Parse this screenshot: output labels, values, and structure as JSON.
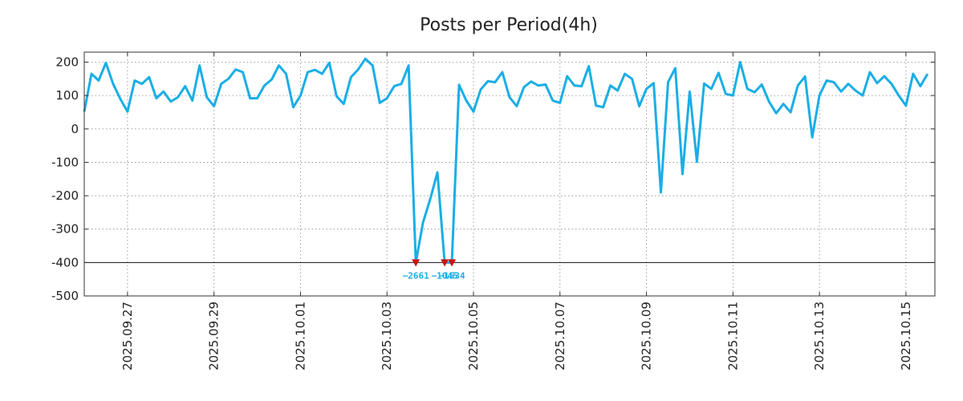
{
  "chart_data": {
    "type": "line",
    "title": "Posts per Period(4h)",
    "xlabel": "",
    "ylabel": "",
    "ylim": [
      -500,
      230
    ],
    "yticks": [
      200,
      100,
      0,
      -100,
      -200,
      -300,
      -400,
      -500
    ],
    "ytick_labels": [
      "200",
      "100",
      "0",
      "-100",
      "-200",
      "-300",
      "-400",
      "-500"
    ],
    "x_period_hours": 4,
    "x_start": "2025.09.26 08:00",
    "x_range_days": [
      0,
      19.67
    ],
    "xticks_days": [
      1,
      3,
      5,
      7,
      9,
      11,
      13,
      15,
      17,
      19
    ],
    "xtick_labels": [
      "2025.09.27",
      "2025.09.29",
      "2025.10.01",
      "2025.10.03",
      "2025.10.05",
      "2025.10.07",
      "2025.10.09",
      "2025.10.11",
      "2025.10.13",
      "2025.10.15"
    ],
    "floor_line": -400,
    "grid": true,
    "line_color": "#1aaee6",
    "marker_color": "#cc1111",
    "annotation_color": "#1aaee6",
    "series": [
      {
        "name": "Posts",
        "values": [
          52,
          165,
          145,
          198,
          135,
          90,
          52,
          145,
          135,
          155,
          92,
          112,
          82,
          95,
          128,
          85,
          190,
          95,
          68,
          135,
          150,
          178,
          170,
          92,
          92,
          130,
          148,
          190,
          165,
          65,
          100,
          170,
          177,
          165,
          198,
          98,
          75,
          155,
          178,
          210,
          190,
          78,
          92,
          128,
          135,
          190,
          -400,
          -280,
          -210,
          -130,
          -400,
          -400,
          132,
          85,
          52,
          118,
          143,
          140,
          170,
          95,
          68,
          125,
          142,
          130,
          133,
          85,
          78,
          158,
          130,
          128,
          188,
          70,
          65,
          130,
          115,
          165,
          150,
          68,
          120,
          137,
          -190,
          140,
          182,
          -135,
          112,
          -98,
          136,
          120,
          168,
          105,
          100,
          200,
          120,
          110,
          133,
          82,
          47,
          75,
          50,
          130,
          157,
          -25,
          100,
          145,
          140,
          112,
          135,
          115,
          100,
          170,
          137,
          158,
          135,
          100,
          70,
          165,
          128,
          165
        ]
      }
    ],
    "clipped_points": [
      {
        "index": 46,
        "label": "−2661"
      },
      {
        "index": 50,
        "label": "−1045"
      },
      {
        "index": 51,
        "label": "−1534"
      }
    ]
  }
}
